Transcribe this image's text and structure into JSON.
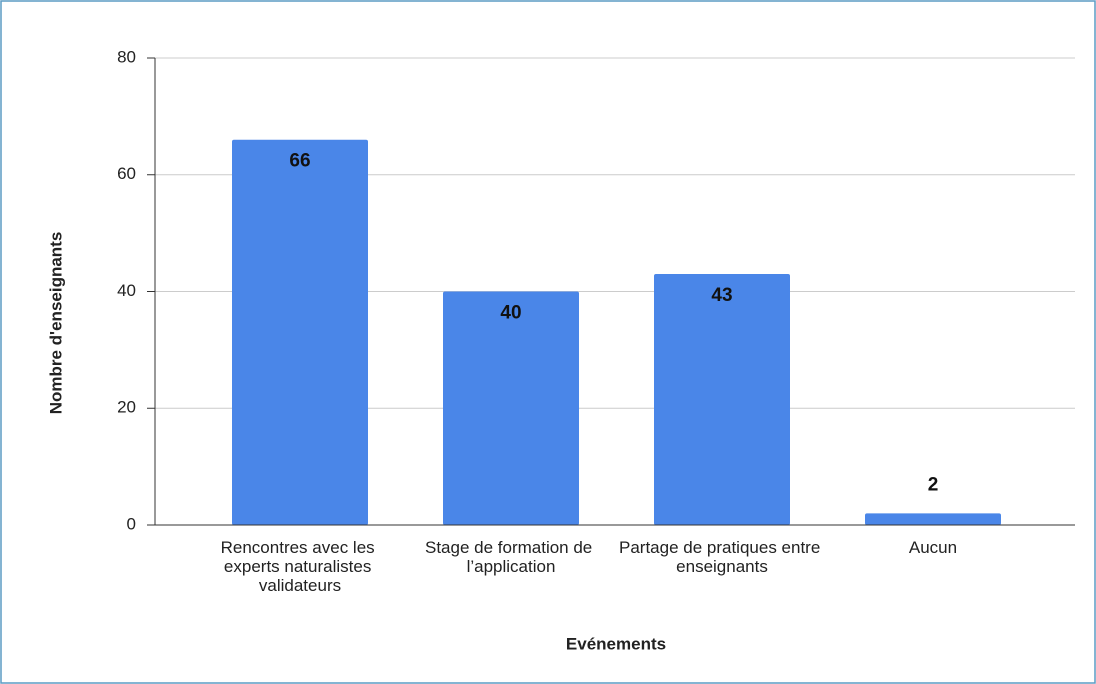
{
  "chart_data": {
    "type": "bar",
    "categories": [
      "Rencontres avec les experts naturalistes validateurs",
      "Stage de formation de l’application",
      "Partage de pratiques entre enseignants",
      "Aucun"
    ],
    "values": [
      66,
      40,
      43,
      2
    ],
    "color": "#4a86e8",
    "xlabel": "Evénements",
    "ylabel": "Nombre d'enseignants",
    "ylim": [
      0,
      80
    ],
    "yticks": [
      0,
      20,
      40,
      60,
      80
    ],
    "grid": true
  }
}
